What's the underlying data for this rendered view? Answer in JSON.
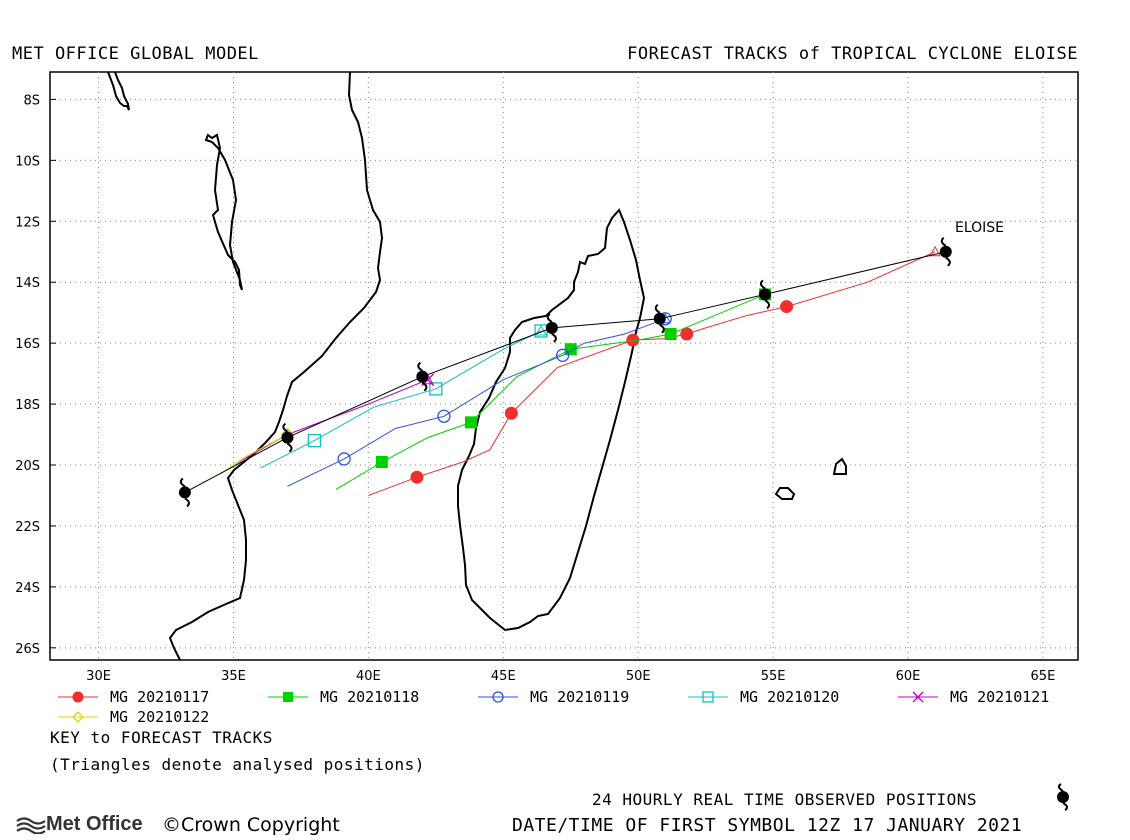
{
  "header": {
    "left_title": "MET OFFICE GLOBAL MODEL",
    "right_title": "FORECAST TRACKS of TROPICAL CYCLONE ELOISE"
  },
  "map": {
    "lon_ticks": [
      "30E",
      "35E",
      "40E",
      "45E",
      "50E",
      "55E",
      "60E",
      "65E"
    ],
    "lat_ticks": [
      "8S",
      "10S",
      "12S",
      "14S",
      "16S",
      "18S",
      "20S",
      "22S",
      "24S",
      "26S"
    ],
    "storm_label": "ELOISE"
  },
  "chart_data": {
    "type": "map-tracks",
    "xlim": [
      28.2,
      66.3
    ],
    "ylim": [
      -26.4,
      -7.1
    ],
    "observed": [
      [
        61.4,
        -13.0
      ],
      [
        54.7,
        -14.4
      ],
      [
        50.8,
        -15.2
      ],
      [
        46.8,
        -15.5
      ],
      [
        42.0,
        -17.1
      ],
      [
        37.0,
        -19.1
      ],
      [
        33.2,
        -20.9
      ]
    ],
    "series": [
      {
        "name": "MG 20210117",
        "color": "#ef2f2f",
        "symbol": "filled-circle",
        "points": [
          [
            61.0,
            -13.0
          ],
          [
            58.5,
            -14.0
          ],
          [
            55.5,
            -14.8
          ],
          [
            54.0,
            -15.1
          ],
          [
            52.5,
            -15.5
          ],
          [
            51.8,
            -15.7
          ],
          [
            51.0,
            -15.85
          ],
          [
            49.8,
            -15.9
          ],
          [
            47.0,
            -16.8
          ],
          [
            45.3,
            -18.3
          ],
          [
            44.5,
            -19.5
          ],
          [
            43.5,
            -19.9
          ],
          [
            41.8,
            -20.4
          ],
          [
            40.0,
            -21.0
          ]
        ],
        "markers": [
          [
            55.5,
            -14.8
          ],
          [
            51.8,
            -15.7
          ],
          [
            49.8,
            -15.9
          ],
          [
            45.3,
            -18.3
          ],
          [
            41.8,
            -20.4
          ]
        ]
      },
      {
        "name": "MG 20210118",
        "color": "#00d000",
        "symbol": "filled-square",
        "points": [
          [
            54.7,
            -14.4
          ],
          [
            52.0,
            -15.4
          ],
          [
            51.2,
            -15.7
          ],
          [
            50.0,
            -15.9
          ],
          [
            47.5,
            -16.2
          ],
          [
            45.5,
            -17.1
          ],
          [
            43.8,
            -18.6
          ],
          [
            42.2,
            -19.1
          ],
          [
            40.5,
            -19.9
          ],
          [
            38.8,
            -20.8
          ]
        ],
        "markers": [
          [
            54.7,
            -14.4
          ],
          [
            51.2,
            -15.7
          ],
          [
            47.5,
            -16.2
          ],
          [
            43.8,
            -18.6
          ],
          [
            40.5,
            -19.9
          ]
        ]
      },
      {
        "name": "MG 20210119",
        "color": "#3050e0",
        "symbol": "open-circle",
        "points": [
          [
            51.0,
            -15.2
          ],
          [
            49.5,
            -15.7
          ],
          [
            48.0,
            -16.0
          ],
          [
            47.2,
            -16.4
          ],
          [
            45.0,
            -17.2
          ],
          [
            42.8,
            -18.4
          ],
          [
            41.0,
            -18.8
          ],
          [
            39.1,
            -19.8
          ],
          [
            37.0,
            -20.7
          ]
        ],
        "markers": [
          [
            51.0,
            -15.2
          ],
          [
            47.2,
            -16.4
          ],
          [
            42.8,
            -18.4
          ],
          [
            39.1,
            -19.8
          ]
        ]
      },
      {
        "name": "MG 20210120",
        "color": "#10c0c0",
        "symbol": "open-square",
        "points": [
          [
            46.4,
            -15.6
          ],
          [
            45.0,
            -16.2
          ],
          [
            42.5,
            -17.5
          ],
          [
            40.2,
            -18.1
          ],
          [
            38.0,
            -19.2
          ],
          [
            36.0,
            -20.1
          ]
        ],
        "markers": [
          [
            46.4,
            -15.6
          ],
          [
            42.5,
            -17.5
          ],
          [
            38.0,
            -19.2
          ]
        ]
      },
      {
        "name": "MG 20210121",
        "color": "#c000c0",
        "symbol": "x",
        "points": [
          [
            42.2,
            -17.2
          ],
          [
            40.0,
            -18.0
          ],
          [
            37.0,
            -19.0
          ],
          [
            35.0,
            -20.0
          ]
        ],
        "markers": [
          [
            42.2,
            -17.2
          ]
        ]
      },
      {
        "name": "MG 20210122",
        "color": "#d8d800",
        "symbol": "open-diamond",
        "points": [
          [
            37.0,
            -19.0
          ],
          [
            35.5,
            -19.7
          ],
          [
            34.5,
            -20.3
          ]
        ],
        "markers": [
          [
            37.0,
            -19.0
          ]
        ]
      }
    ]
  },
  "legend": [
    {
      "label": "MG 20210117",
      "color": "#ef2f2f",
      "symbol": "filled-circle"
    },
    {
      "label": "MG 20210118",
      "color": "#00d000",
      "symbol": "filled-square"
    },
    {
      "label": "MG 20210119",
      "color": "#3050e0",
      "symbol": "open-circle"
    },
    {
      "label": "MG 20210120",
      "color": "#10c0c0",
      "symbol": "open-square"
    },
    {
      "label": "MG 20210121",
      "color": "#c000c0",
      "symbol": "x"
    },
    {
      "label": "MG 20210122",
      "color": "#d8d800",
      "symbol": "open-diamond"
    }
  ],
  "key": {
    "title": "KEY to FORECAST TRACKS",
    "note": "(Triangles denote analysed positions)"
  },
  "footer": {
    "observed_note": "24 HOURLY REAL TIME OBSERVED POSITIONS",
    "datetime": "DATE/TIME OF FIRST SYMBOL 12Z 17 JANUARY 2021",
    "logo_text": "Met Office",
    "copyright": "Crown Copyright"
  }
}
